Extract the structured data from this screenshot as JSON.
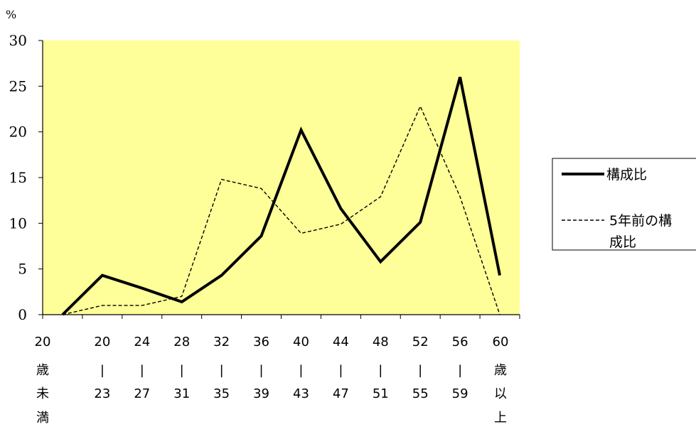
{
  "chart_data": {
    "type": "line",
    "y_unit": "%",
    "ylim": [
      0,
      30
    ],
    "yticks": [
      "0",
      "5",
      "10",
      "15",
      "20",
      "25",
      "30"
    ],
    "categories": [
      [
        "20",
        "歳",
        "未",
        "満"
      ],
      [
        "20",
        "|",
        "23"
      ],
      [
        "24",
        "|",
        "27"
      ],
      [
        "28",
        "|",
        "31"
      ],
      [
        "32",
        "|",
        "35"
      ],
      [
        "36",
        "|",
        "39"
      ],
      [
        "40",
        "|",
        "43"
      ],
      [
        "44",
        "|",
        "47"
      ],
      [
        "48",
        "|",
        "51"
      ],
      [
        "52",
        "|",
        "55"
      ],
      [
        "56",
        "|",
        "59"
      ],
      [
        "60",
        "歳",
        "以",
        "上"
      ]
    ],
    "series": [
      {
        "name": "構成比",
        "values": [
          0,
          4.3,
          2.9,
          1.4,
          4.3,
          8.6,
          20.2,
          11.6,
          5.8,
          10.1,
          26.0,
          4.3
        ]
      },
      {
        "name": "5年前の構成比",
        "values": [
          0,
          1.0,
          1.0,
          2.0,
          14.8,
          13.8,
          8.9,
          9.9,
          12.9,
          22.8,
          12.9,
          0
        ]
      }
    ],
    "legend": {
      "position": "right",
      "entries": [
        {
          "lines": [
            "構成比"
          ]
        },
        {
          "lines": [
            "5年前の構",
            "成比"
          ]
        }
      ]
    },
    "plot_background": "#FFFF99",
    "grid": false
  }
}
